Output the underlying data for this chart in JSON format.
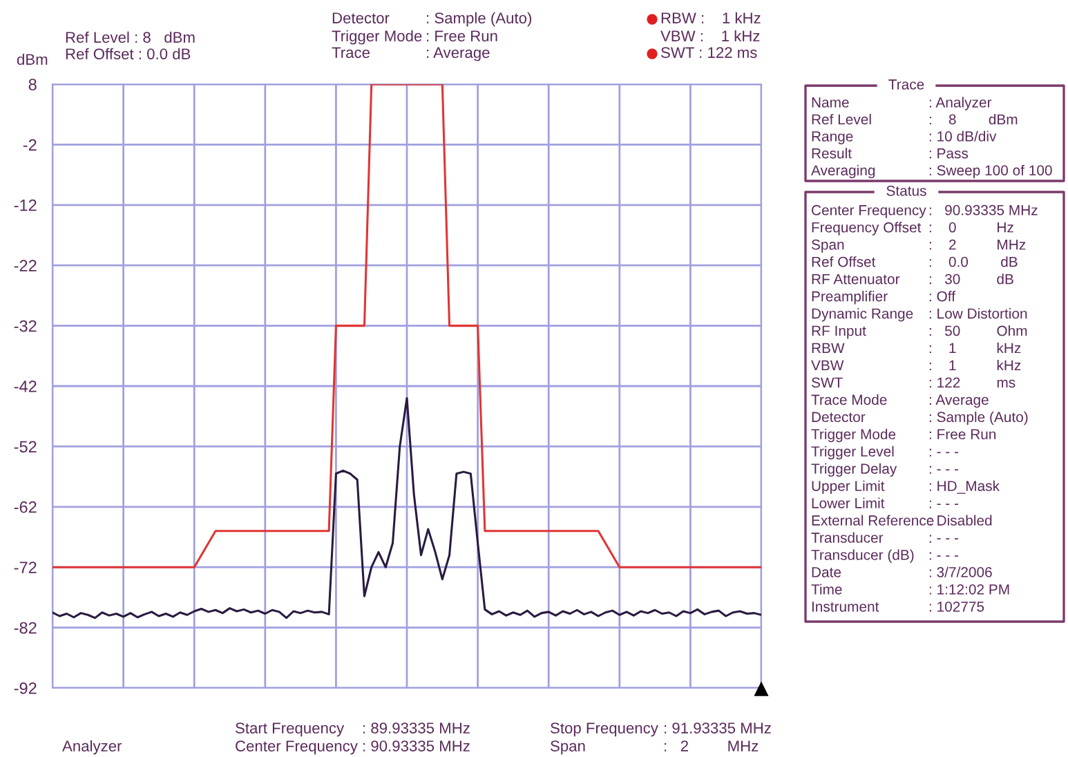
{
  "chart_data": {
    "type": "line",
    "ylabel": "dBm",
    "categories": [
      null,
      null,
      null,
      null,
      null,
      null,
      null,
      null,
      null,
      null,
      null,
      null,
      null,
      null,
      null,
      null,
      null,
      null,
      null,
      null,
      null,
      null,
      null,
      null,
      null,
      null,
      null,
      null,
      null,
      null,
      null,
      null,
      null,
      null,
      null,
      null,
      null,
      null,
      null,
      null,
      null,
      null,
      null,
      null,
      null,
      null,
      null,
      null,
      null,
      null,
      null,
      null,
      null,
      null,
      null,
      null,
      null,
      null,
      null,
      null,
      null,
      null,
      null,
      null,
      null,
      null,
      null,
      null,
      null,
      null,
      null,
      null,
      null,
      null,
      null,
      null,
      null,
      null,
      null,
      null,
      null,
      null,
      null,
      null,
      null,
      null,
      null,
      null,
      null,
      null,
      null,
      null,
      null,
      null,
      null,
      null,
      null,
      null,
      null,
      null,
      null
    ],
    "ylim": [
      -92,
      8
    ],
    "yticks": [
      8,
      -2,
      -12,
      -22,
      -32,
      -42,
      -52,
      -62,
      -72,
      -82,
      -92
    ],
    "tick_labels": "y",
    "grid": true,
    "marker": "none",
    "line_style": "solid",
    "series": [
      {
        "color": "#e03535",
        "values": [
          -72,
          -72,
          -72,
          -72,
          -72,
          -72,
          -72,
          -72,
          -72,
          -72,
          -72,
          -72,
          -72,
          -72,
          -72,
          -72,
          -72,
          -72,
          -72,
          -72,
          -72,
          -70,
          -68,
          -66,
          -66,
          -66,
          -66,
          -66,
          -66,
          -66,
          -66,
          -66,
          -66,
          -66,
          -66,
          -66,
          -66,
          -66,
          -66,
          -66,
          -32,
          -32,
          -32,
          -32,
          -32,
          8,
          8,
          8,
          8,
          8,
          8,
          8,
          8,
          8,
          8,
          8,
          -32,
          -32,
          -32,
          -32,
          -32,
          -66,
          -66,
          -66,
          -66,
          -66,
          -66,
          -66,
          -66,
          -66,
          -66,
          -66,
          -66,
          -66,
          -66,
          -66,
          -66,
          -66,
          -68,
          -70,
          -72,
          -72,
          -72,
          -72,
          -72,
          -72,
          -72,
          -72,
          -72,
          -72,
          -72,
          -72,
          -72,
          -72,
          -72,
          -72,
          -72,
          -72,
          -72,
          -72,
          -72
        ]
      },
      {
        "color": "#2a1a40",
        "values": [
          -79.5,
          -80.1,
          -79.7,
          -80.3,
          -79.6,
          -79.9,
          -80.4,
          -79.5,
          -80.0,
          -79.7,
          -80.2,
          -79.6,
          -80.3,
          -79.8,
          -79.4,
          -80.1,
          -79.7,
          -80.2,
          -79.5,
          -79.9,
          -79.3,
          -78.9,
          -79.4,
          -79.1,
          -79.6,
          -78.8,
          -79.3,
          -79.0,
          -79.5,
          -79.2,
          -79.7,
          -79.1,
          -79.4,
          -80.4,
          -79.3,
          -79.6,
          -79.2,
          -79.5,
          -79.4,
          -79.8,
          -56.5,
          -56,
          -56.5,
          -57.5,
          -76.8,
          -72,
          -69.5,
          -72,
          -68,
          -52,
          -44,
          -60,
          -70,
          -65.7,
          -69.5,
          -74,
          -70,
          -56.5,
          -56.2,
          -56.5,
          -68,
          -79,
          -79.8,
          -79.3,
          -80.0,
          -79.5,
          -79.9,
          -79.2,
          -80.2,
          -79.6,
          -79.4,
          -80.0,
          -79.3,
          -79.7,
          -79.1,
          -79.8,
          -79.4,
          -80.1,
          -79.5,
          -79.2,
          -79.9,
          -79.4,
          -80.0,
          -79.3,
          -79.6,
          -79.1,
          -79.7,
          -79.5,
          -80.1,
          -79.3,
          -79.6,
          -79.0,
          -79.8,
          -79.4,
          -79.2,
          -80.1,
          -79.5,
          -79.3,
          -79.7,
          -79.6,
          -79.9
        ]
      }
    ],
    "annotations": [
      "Ref Level : 8   dBm",
      "Ref Offset : 0.0 dB",
      "Detector",
      ": Sample (Auto)",
      "Trigger Mode",
      ": Free Run",
      "Trace",
      ": Average",
      "RBW :    1 kHz",
      "VBW :    1 kHz",
      "SWT : 122 ms",
      "Analyzer",
      "Start Frequency",
      ": 89.93335 MHz",
      "Center Frequency",
      ": 90.93335 MHz",
      "Stop Frequency",
      ": 91.93335 MHz",
      "Span",
      ":   2         MHz",
      "Trace",
      "Name",
      ": Analyzer",
      "Ref Level",
      ":    8        dBm",
      "Range",
      ": 10 dB/div",
      "Result",
      ": Pass",
      "Averaging",
      ": Sweep 100 of 100",
      "Status",
      "Center Frequency",
      ":   90.93335 MHz",
      "Frequency Offset",
      ":    0          Hz",
      "Span",
      ":    2          MHz",
      "Ref Offset",
      ":    0.0        dB",
      "RF Attenuator",
      ":   30         dB",
      "Preamplifier",
      ": Off",
      "Dynamic Range",
      ": Low Distortion",
      "RF Input",
      ":   50         Ohm",
      "RBW",
      ":    1          kHz",
      "VBW",
      ":    1          kHz",
      "SWT",
      ": 122         ms",
      "Trace Mode",
      ": Average",
      "Detector",
      ": Sample (Auto)",
      "Trigger Mode",
      ": Free Run",
      "Trigger Level",
      ": - - -",
      "Trigger Delay",
      ": - - -",
      "Upper Limit",
      ": HD_Mask",
      "Lower Limit",
      ": - - -",
      "External Reference",
      ": Disabled",
      "Transducer",
      ": - - -",
      "Transducer (dB)",
      ": - - -",
      "Date",
      ": 3/7/2006",
      "Time",
      ": 1:12:02 PM",
      "Instrument",
      ": 102775"
    ]
  }
}
